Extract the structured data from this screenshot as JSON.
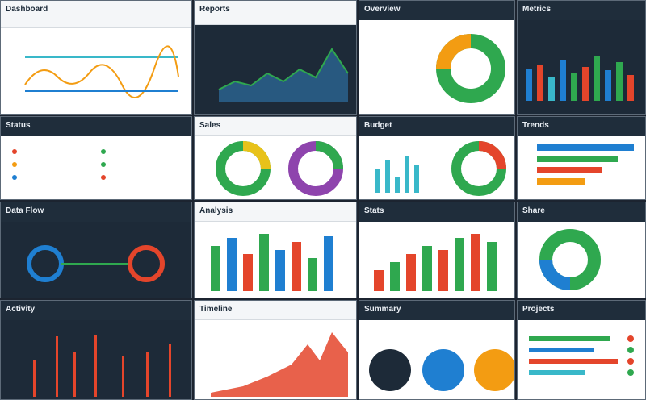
{
  "tiles": [
    {
      "title": "Dashboard"
    },
    {
      "title": "Reports"
    },
    {
      "title": "Overview"
    },
    {
      "title": "Metrics"
    },
    {
      "title": "Status"
    },
    {
      "title": "Sales"
    },
    {
      "title": "Budget"
    },
    {
      "title": "Trends"
    },
    {
      "title": "Data Flow"
    },
    {
      "title": "Analysis"
    },
    {
      "title": "Stats"
    },
    {
      "title": "Share"
    },
    {
      "title": "Activity"
    },
    {
      "title": "Timeline"
    },
    {
      "title": "Summary"
    },
    {
      "title": "Projects"
    }
  ],
  "colors": {
    "green": "#2fa84f",
    "blue": "#1f7fd1",
    "red": "#e4452b",
    "orange": "#f39c12",
    "cyan": "#39b8c9",
    "yellow": "#e8c21a",
    "purple": "#8e44ad"
  }
}
